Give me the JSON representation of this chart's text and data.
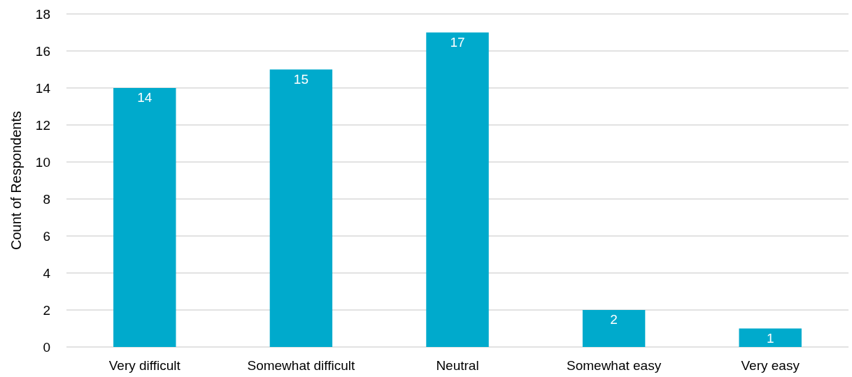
{
  "chart_data": {
    "type": "bar",
    "ylabel": "Count of Respondents",
    "categories": [
      "Very difficult",
      "Somewhat difficult",
      "Neutral",
      "Somewhat easy",
      "Very easy"
    ],
    "values": [
      14,
      15,
      17,
      2,
      1
    ],
    "color": "#00aacc",
    "ylim": [
      0,
      18
    ],
    "yticks": [
      0,
      2,
      4,
      6,
      8,
      10,
      12,
      14,
      16,
      18
    ],
    "grid": "y",
    "data_labels": true
  }
}
